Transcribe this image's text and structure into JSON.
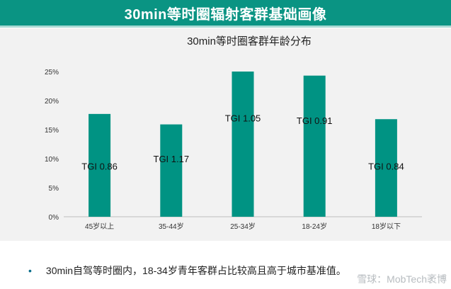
{
  "header": {
    "title": "30min等时圈辐射客群基础画像"
  },
  "footer": {
    "bullet": "•",
    "text": "30min自驾等时圈内，18-34岁青年客群占比较高且高于城市基准值。"
  },
  "watermark": {
    "text": "雪球：MobTech袤博"
  },
  "colors": {
    "banner": "#0a9483",
    "bar": "#009383",
    "panel": "#f2f2f2"
  },
  "chart_data": {
    "type": "bar",
    "title": "30min等时圈客群年龄分布",
    "xlabel": "",
    "ylabel": "",
    "categories": [
      "45岁以上",
      "35-44岁",
      "25-34岁",
      "18-24岁",
      "18岁以下"
    ],
    "values": [
      17.7,
      15.9,
      25.0,
      24.3,
      16.8
    ],
    "annotations": [
      "TGI 0.86",
      "TGI 1.17",
      "TGI 1.05",
      "TGI 0.91",
      "TGI 0.84"
    ],
    "annotation_values": [
      8.7,
      10.0,
      17.0,
      16.6,
      8.7
    ],
    "ylim": [
      0,
      25
    ],
    "yticks": [
      "0%",
      "5%",
      "10%",
      "15%",
      "20%",
      "25%"
    ],
    "grid": false
  }
}
